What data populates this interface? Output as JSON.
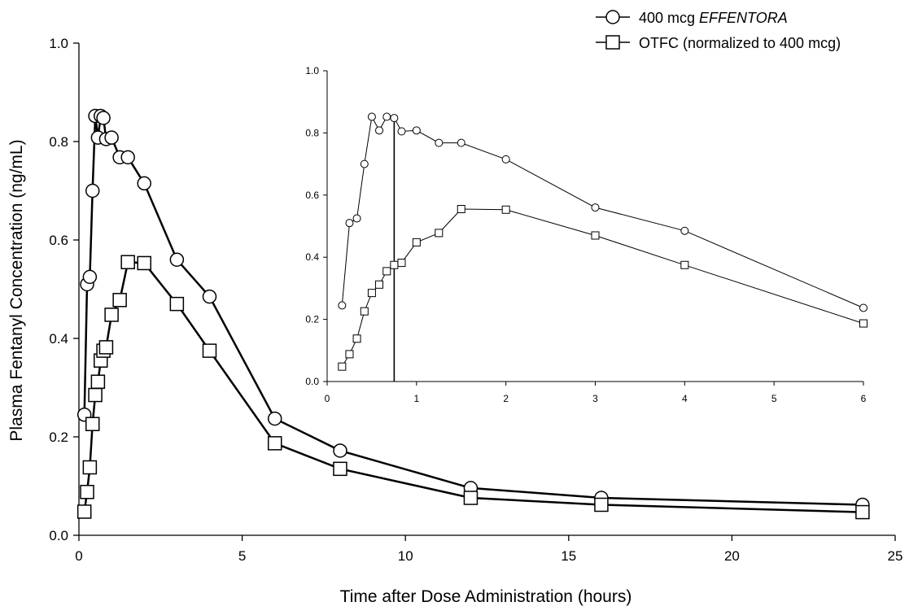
{
  "chart_data": [
    {
      "type": "line",
      "xlabel": "Time after Dose Administration (hours)",
      "ylabel": "Plasma Fentanyl Concentration (ng/mL)",
      "xlim": [
        0,
        25
      ],
      "ylim": [
        0,
        1.0
      ],
      "x_ticks": [
        0,
        5,
        10,
        15,
        20,
        25
      ],
      "y_ticks": [
        "0.0",
        "0.2",
        "0.4",
        "0.6",
        "0.8",
        "1.0"
      ],
      "grid": false,
      "legend": {
        "position": "top-right",
        "entries": [
          {
            "marker": "circle",
            "text": "400 mcg ",
            "text_italic": "EFFENTORA"
          },
          {
            "marker": "square",
            "text": "OTFC (normalized to 400 mcg)"
          }
        ]
      },
      "series": [
        {
          "name": "400 mcg EFFENTORA",
          "marker": "circle",
          "x": [
            0.167,
            0.25,
            0.333,
            0.417,
            0.5,
            0.583,
            0.667,
            0.75,
            0.833,
            1,
            1.25,
            1.5,
            2,
            3,
            4,
            6,
            8,
            12,
            16,
            24
          ],
          "y": [
            0.245,
            0.51,
            0.525,
            0.7,
            0.852,
            0.808,
            0.852,
            0.848,
            0.805,
            0.808,
            0.768,
            0.768,
            0.715,
            0.56,
            0.485,
            0.237,
            0.172,
            0.096,
            0.076,
            0.062
          ]
        },
        {
          "name": "OTFC (normalized to 400 mcg)",
          "marker": "square",
          "x": [
            0.167,
            0.25,
            0.333,
            0.417,
            0.5,
            0.583,
            0.667,
            0.75,
            0.833,
            1,
            1.25,
            1.5,
            2,
            3,
            4,
            6,
            8,
            12,
            16,
            24
          ],
          "y": [
            0.048,
            0.088,
            0.138,
            0.226,
            0.285,
            0.312,
            0.355,
            0.375,
            0.382,
            0.448,
            0.478,
            0.555,
            0.553,
            0.47,
            0.375,
            0.187,
            0.135,
            0.076,
            0.062,
            0.047
          ]
        }
      ]
    },
    {
      "type": "line",
      "inset": true,
      "xlim": [
        0,
        6
      ],
      "ylim": [
        0,
        1.0
      ],
      "x_ticks": [
        0,
        1,
        2,
        3,
        4,
        5,
        6
      ],
      "y_ticks": [
        "0.0",
        "0.2",
        "0.4",
        "0.6",
        "0.8",
        "1.0"
      ],
      "vertical_marker_x": 0.75,
      "series": [
        {
          "marker": "circle",
          "x": [
            0.167,
            0.25,
            0.333,
            0.417,
            0.5,
            0.583,
            0.667,
            0.75,
            0.833,
            1,
            1.25,
            1.5,
            2,
            3,
            4,
            6
          ],
          "y": [
            0.245,
            0.51,
            0.525,
            0.7,
            0.852,
            0.808,
            0.852,
            0.848,
            0.805,
            0.808,
            0.768,
            0.768,
            0.715,
            0.56,
            0.485,
            0.237
          ]
        },
        {
          "marker": "square",
          "x": [
            0.167,
            0.25,
            0.333,
            0.417,
            0.5,
            0.583,
            0.667,
            0.75,
            0.833,
            1,
            1.25,
            1.5,
            2,
            3,
            4,
            6
          ],
          "y": [
            0.048,
            0.088,
            0.138,
            0.226,
            0.285,
            0.312,
            0.355,
            0.375,
            0.382,
            0.448,
            0.478,
            0.555,
            0.553,
            0.47,
            0.375,
            0.187
          ]
        }
      ]
    }
  ]
}
